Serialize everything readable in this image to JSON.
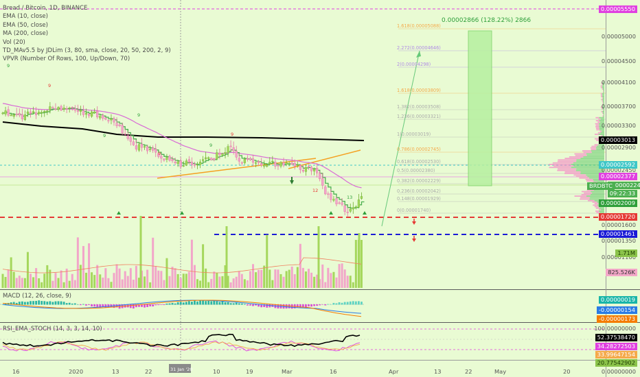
{
  "legend": {
    "title": "Bread / Bitcoin, 1D, BINANCE",
    "studies": [
      "EMA (10, close)",
      "EMA (50, close)",
      "MA (200, close)",
      "Vol (20)",
      "TD_MAv5.5 by JDLim (3, 80, sma, close, 20, 50, 200, 2, 9)",
      "VPVR (Number Of Rows, 100, Up/Down, 70)"
    ]
  },
  "macd_label": "MACD (12, 26, close, 9)",
  "rsi_label": "RSI_EMA_STOCH (14, 3, 3, 14, 10)",
  "measure_text": "0.00002866 (128.22%) 2866",
  "fib_levels": [
    {
      "label": "1.618(0.00005088)",
      "color": "#f5a94a"
    },
    {
      "label": "2.272(0.00004646)",
      "color": "#b08be6"
    },
    {
      "label": "2(0.00004298)",
      "color": "#b08be6"
    },
    {
      "label": "1.618(0.00003809)",
      "color": "#f5a94a"
    },
    {
      "label": "1.382(0.00003508)",
      "color": "#aaaaaa"
    },
    {
      "label": "1.236(0.00003321)",
      "color": "#aaaaaa"
    },
    {
      "label": "1(0.00003019)",
      "color": "#aaaaaa"
    },
    {
      "label": "0.786(0.00002745)",
      "color": "#f5a94a"
    },
    {
      "label": "0.618(0.00002530)",
      "color": "#aaaaaa"
    },
    {
      "label": "0.5(0.00002380)",
      "color": "#aaaaaa"
    },
    {
      "label": "0.382(0.00002229)",
      "color": "#aaaaaa"
    },
    {
      "label": "0.236(0.00002042)",
      "color": "#aaaaaa"
    },
    {
      "label": "0.148(0.00001929)",
      "color": "#aaaaaa"
    },
    {
      "label": "0(0.00001740)",
      "color": "#aaaaaa"
    }
  ],
  "price_axis": {
    "plain": [
      "0.00005000",
      "0.00004500",
      "0.00004100",
      "0.00003700",
      "0.00003300",
      "0.00002900",
      "0.00002450",
      "0.00001600",
      "0.00001350",
      "0.00001100"
    ],
    "tags": [
      {
        "text": "0.00005550",
        "color": "#e040e0"
      },
      {
        "text": "0.00003013",
        "color": "#000000"
      },
      {
        "text": "0.00002592",
        "color": "#3ec7c7"
      },
      {
        "text": "0.00002377",
        "color": "#e040e0"
      },
      {
        "text": "0.00002245",
        "color": "#4caf50"
      },
      {
        "text": "09:22:33",
        "color": "#4caf50"
      },
      {
        "text": "0.00002009",
        "color": "#2e9f3a"
      },
      {
        "text": "0.00001720",
        "color": "#e53935"
      },
      {
        "text": "0.00001461",
        "color": "#1a1ad6"
      },
      {
        "text": "1.71M",
        "color": "#8bc34a"
      },
      {
        "text": "825.526K",
        "color": "#f4a8c9"
      }
    ],
    "symbol": "BRDBTC"
  },
  "macd_axis": [
    {
      "text": "0.00000019",
      "color": "#18b5a8"
    },
    {
      "text": "-0.00000154",
      "color": "#2a7be4"
    },
    {
      "text": "-0.00000173",
      "color": "#f57c00"
    }
  ],
  "rsi_axis": {
    "top": "100.00000000",
    "bottom": "0.00000000",
    "tags": [
      {
        "text": "52.37538470",
        "color": "#000000"
      },
      {
        "text": "34.28272503",
        "color": "#e040e0"
      },
      {
        "text": "33.99647154",
        "color": "#f5a94a"
      },
      {
        "text": "20.77542902",
        "color": "#8bc34a"
      }
    ]
  },
  "time_axis": [
    "16",
    "2020",
    "13",
    "22",
    "31 Jan '20",
    "10",
    "19",
    "Mar",
    "16",
    "Apr",
    "13",
    "22",
    "May",
    "20"
  ],
  "td_marks": [
    "9",
    "9",
    "9",
    "9",
    "9",
    "9",
    "9",
    "12",
    "13"
  ],
  "colors": {
    "up": "#a5d75c",
    "down": "#f2a5c9",
    "ema10": "#4caf50",
    "ema50": "#d96ad6",
    "ma200": "#000000"
  }
}
